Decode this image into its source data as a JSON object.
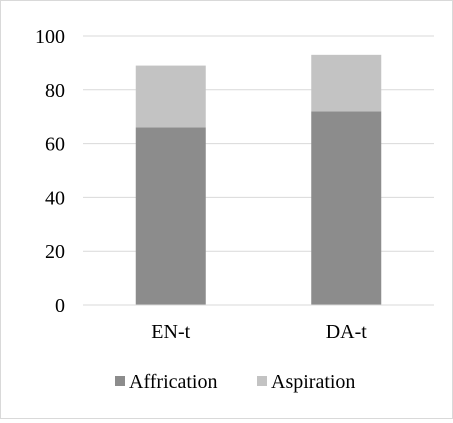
{
  "chart_data": {
    "type": "bar",
    "stacked": true,
    "categories": [
      "EN-t",
      "DA-t"
    ],
    "series": [
      {
        "name": "Affrication",
        "values": [
          66,
          72
        ],
        "color": "#8c8c8c"
      },
      {
        "name": "Aspiration",
        "values": [
          23,
          21
        ],
        "color": "#c3c3c3"
      }
    ],
    "ylim": [
      0,
      100
    ],
    "yticks": [
      "0",
      "20",
      "40",
      "60",
      "80",
      "100"
    ],
    "grid": true,
    "grid_color": "#d9d9d9",
    "legend_position": "bottom"
  }
}
